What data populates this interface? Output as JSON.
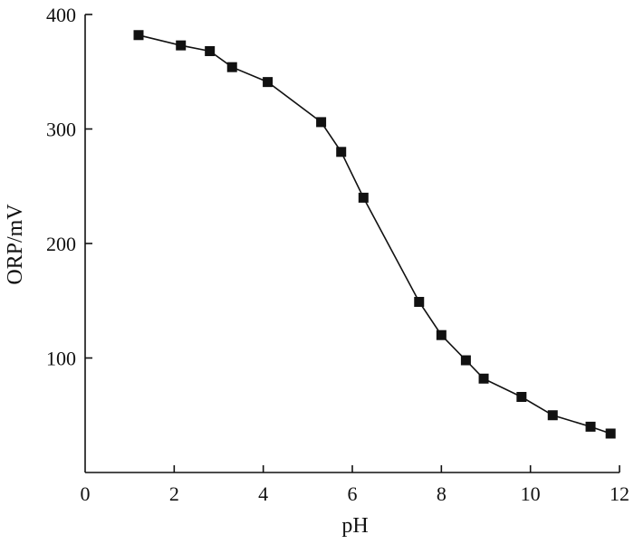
{
  "chart_data": {
    "type": "line",
    "xlabel": "pH",
    "ylabel": "ORP/mV",
    "xlim": [
      0,
      12
    ],
    "ylim": [
      0,
      400
    ],
    "x_ticks": [
      0,
      2,
      4,
      6,
      8,
      10,
      12
    ],
    "y_ticks": [
      100,
      200,
      300,
      400
    ],
    "x_tick_labels": [
      "0",
      "2",
      "4",
      "6",
      "8",
      "10",
      "12"
    ],
    "y_tick_labels": [
      "100",
      "200",
      "300",
      "400"
    ],
    "grid": false,
    "legend": false,
    "marker": "square",
    "color": "#111111",
    "series": [
      {
        "x": [
          1.2,
          2.15,
          2.8,
          3.3,
          4.1,
          5.3,
          5.75,
          6.25,
          7.5,
          8.0,
          8.55,
          8.95,
          9.8,
          10.5,
          11.35,
          11.8
        ],
        "y": [
          382,
          373,
          368,
          354,
          341,
          306,
          280,
          240,
          149,
          120,
          98,
          82,
          66,
          50,
          40,
          34
        ]
      }
    ]
  }
}
